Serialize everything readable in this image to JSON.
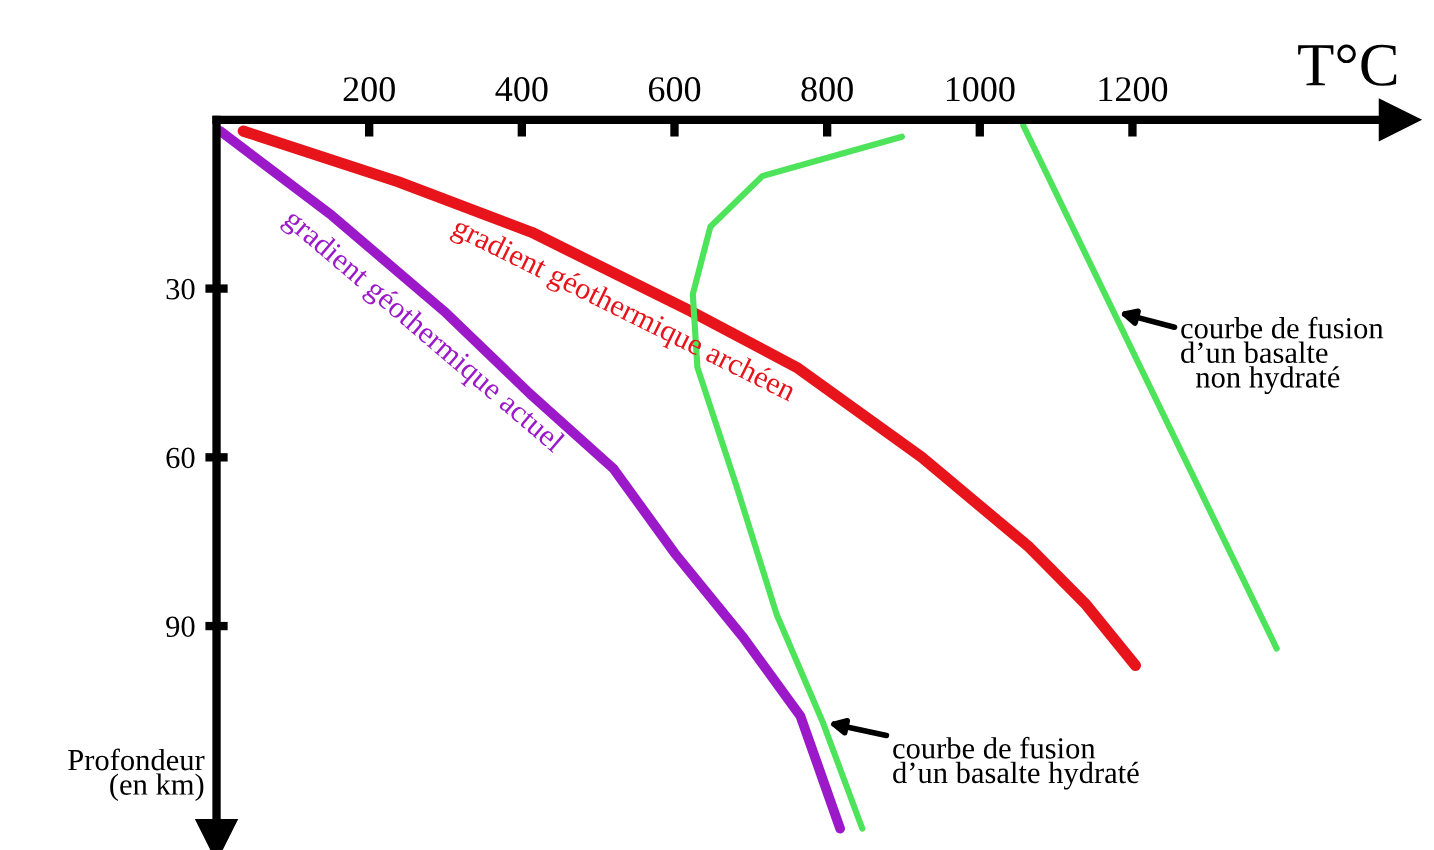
{
  "chart_data": {
    "type": "line",
    "xlabel": "T°C",
    "ylabel": "Profondeur\n(en km)",
    "xlim": [
      0,
      1550
    ],
    "ylim": [
      128,
      0
    ],
    "xticks": [
      200,
      400,
      600,
      800,
      1000,
      1200
    ],
    "yticks": [
      30,
      60,
      90
    ],
    "grid": false,
    "legend": false,
    "marker": "none",
    "line_style": "solid",
    "series": [
      {
        "name": "gradient géothermique archéen",
        "color": "#e8141c",
        "x": [
          35,
          238,
          413,
          621,
          760,
          924,
          1065,
          1138,
          1204
        ],
        "values": [
          2,
          11,
          20,
          34,
          44,
          60,
          76,
          86,
          97
        ]
      },
      {
        "name": "gradient géothermique actuel",
        "color": "#9b19c8",
        "x": [
          5,
          151,
          298,
          413,
          520,
          600,
          690,
          765,
          817
        ],
        "values": [
          2,
          17,
          34,
          49,
          62,
          77,
          92,
          106,
          126
        ]
      },
      {
        "color": "#4de35a",
        "x": [
          898,
          715,
          647,
          624,
          630,
          681,
          734,
          794,
          846
        ],
        "values": [
          3,
          10,
          19,
          31,
          44,
          65,
          88,
          107,
          126
        ]
      },
      {
        "color": "#4de35a",
        "x": [
          1057,
          1389
        ],
        "values": [
          1,
          94
        ]
      }
    ],
    "annotations": [
      {
        "text": "courbe de fusion\nd’un basalte\n  non hydraté",
        "x": 1175,
        "y": 34
      },
      {
        "text": "courbe de fusion\nd’un basalte hydraté",
        "x": 794,
        "y": 107
      }
    ]
  }
}
